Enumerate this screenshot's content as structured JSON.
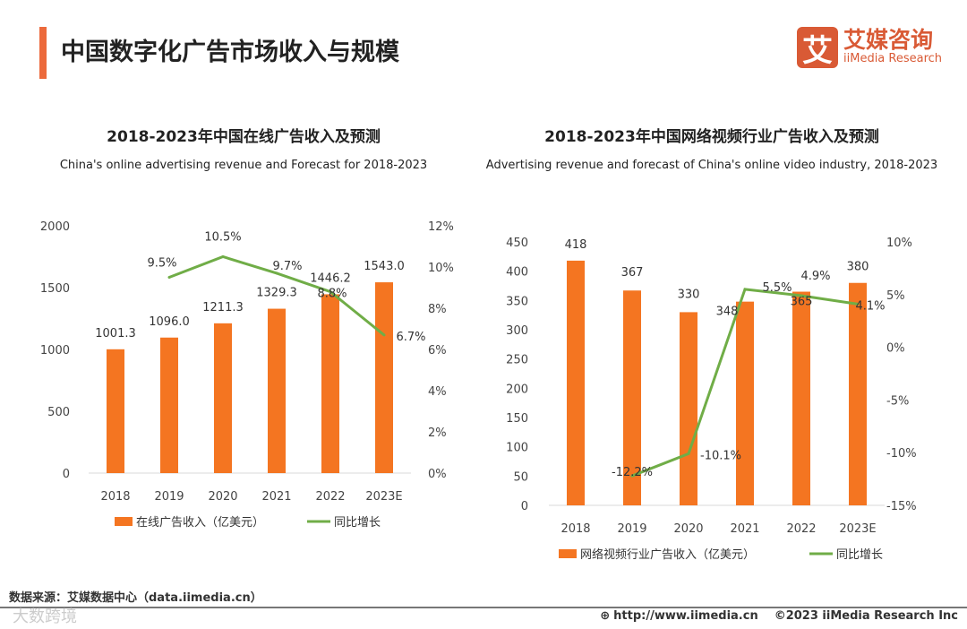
{
  "header": {
    "title": "中国数字化广告市场收入与规模",
    "logo_cn": "艾媒咨询",
    "logo_en": "iiMedia Research",
    "logo_mark": "艾"
  },
  "footer": {
    "source": "数据来源：艾媒数据中心（data.iimedia.cn）",
    "url": "http://www.iimedia.cn",
    "copyright": "©2023  iiMedia Research  Inc",
    "watermark": "大数跨境"
  },
  "colors": {
    "bar": "#f47521",
    "line": "#70ad47",
    "accent": "#ec6a3c"
  },
  "chart_data": [
    {
      "type": "bar+line",
      "title": "2018-2023年中国在线广告收入及预测",
      "subtitle": "China's online advertising revenue and Forecast for 2018-2023",
      "categories": [
        "2018",
        "2019",
        "2020",
        "2021",
        "2022",
        "2023E"
      ],
      "series": [
        {
          "name": "在线广告收入（亿美元）",
          "type": "bar",
          "values": [
            1001.3,
            1096.0,
            1211.3,
            1329.3,
            1446.2,
            1543.0
          ],
          "labels": [
            "1001.3",
            "1096.0",
            "1211.3",
            "1329.3",
            "1446.2",
            "1543.0"
          ]
        },
        {
          "name": "同比增长",
          "type": "line",
          "values": [
            null,
            9.5,
            10.5,
            9.7,
            8.8,
            6.7
          ],
          "labels": [
            "",
            "9.5%",
            "10.5%",
            "9.7%",
            "8.8%",
            "6.7%"
          ]
        }
      ],
      "ylim": [
        0,
        2000
      ],
      "yticks": [
        "0",
        "500",
        "1000",
        "1500",
        "2000"
      ],
      "y2lim": [
        0,
        12
      ],
      "y2ticks": [
        "0%",
        "2%",
        "4%",
        "6%",
        "8%",
        "10%",
        "12%"
      ],
      "legend": "bottom"
    },
    {
      "type": "bar+line",
      "title": "2018-2023年中国网络视频行业广告收入及预测",
      "subtitle": "Advertising revenue and forecast of China's online video industry, 2018-2023",
      "categories": [
        "2018",
        "2019",
        "2020",
        "2021",
        "2022",
        "2023E"
      ],
      "series": [
        {
          "name": "网络视频行业广告收入（亿美元）",
          "type": "bar",
          "values": [
            418,
            367,
            330,
            348,
            365,
            380
          ],
          "labels": [
            "418",
            "367",
            "330",
            "348",
            "365",
            "380"
          ]
        },
        {
          "name": "同比增长",
          "type": "line",
          "values": [
            null,
            -12.2,
            -10.1,
            5.5,
            4.9,
            4.1
          ],
          "labels": [
            "",
            "-12.2%",
            "-10.1%",
            "5.5%",
            "4.9%",
            "4.1%"
          ]
        }
      ],
      "ylim": [
        0,
        450
      ],
      "yticks": [
        "0",
        "50",
        "100",
        "150",
        "200",
        "250",
        "300",
        "350",
        "400",
        "450"
      ],
      "y2lim": [
        -15,
        10
      ],
      "y2ticks": [
        "-15%",
        "-10%",
        "-5%",
        "0%",
        "5%",
        "10%"
      ],
      "legend": "bottom"
    }
  ]
}
